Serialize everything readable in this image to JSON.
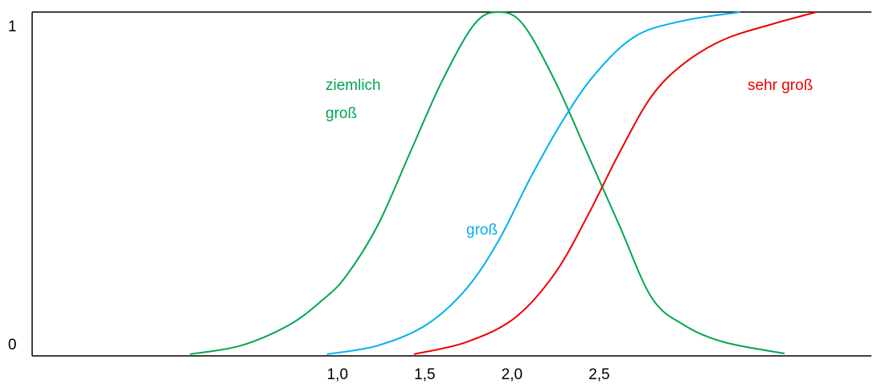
{
  "chart_data": {
    "type": "line",
    "xlim": [
      -0.75,
      4.06
    ],
    "ylim": [
      0,
      1
    ],
    "xticks": [
      {
        "value": 1,
        "label": "1,0"
      },
      {
        "value": 1.5,
        "label": "1,5"
      },
      {
        "value": 2,
        "label": "2,0"
      },
      {
        "value": 2.5,
        "label": "2,5"
      }
    ],
    "yticks": [
      0,
      1
    ],
    "series": [
      {
        "color": "#00a651",
        "x": [
          0.155,
          0.446,
          0.723,
          0.908,
          1.046,
          1.231,
          1.415,
          1.6,
          1.785,
          1.923,
          2.062,
          2.246,
          2.431,
          2.615,
          2.8,
          2.985,
          3.215,
          3.562
        ],
        "values": [
          0.005,
          0.03,
          0.09,
          0.16,
          0.23,
          0.38,
          0.59,
          0.8,
          0.965,
          1,
          0.965,
          0.8,
          0.59,
          0.38,
          0.17,
          0.09,
          0.04,
          0.007
        ]
      },
      {
        "color": "#00b0f0",
        "x": [
          0.94,
          1.231,
          1.508,
          1.738,
          1.923,
          2.108,
          2.292,
          2.477,
          2.708,
          2.985,
          3.308
        ],
        "values": [
          0.005,
          0.03,
          0.09,
          0.195,
          0.335,
          0.52,
          0.685,
          0.82,
          0.93,
          0.975,
          1
        ]
      },
      {
        "color": "#ee0000",
        "x": [
          1.438,
          1.738,
          2.015,
          2.246,
          2.431,
          2.615,
          2.8,
          2.985,
          3.215,
          3.492,
          3.746
        ],
        "values": [
          0.005,
          0.04,
          0.11,
          0.24,
          0.405,
          0.59,
          0.755,
          0.85,
          0.92,
          0.965,
          1
        ]
      }
    ],
    "annotations": [
      {
        "lines": [
          "ziemlich",
          "groß"
        ],
        "color": "#00a651"
      },
      {
        "lines": [
          "groß"
        ],
        "color": "#00b0f0"
      },
      {
        "lines": [
          "sehr groß"
        ],
        "color": "#ee0000"
      }
    ]
  }
}
